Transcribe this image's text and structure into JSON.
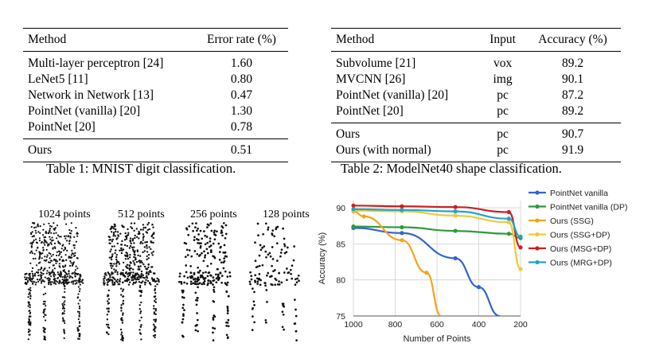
{
  "table1": {
    "headers": [
      "Method",
      "Error rate (%)"
    ],
    "rows": [
      [
        "Multi-layer perceptron [24]",
        "1.60"
      ],
      [
        "LeNet5 [11]",
        "0.80"
      ],
      [
        "Network in Network [13]",
        "0.47"
      ],
      [
        "PointNet (vanilla) [20]",
        "1.30"
      ],
      [
        "PointNet [20]",
        "0.78"
      ]
    ],
    "ours": [
      "Ours",
      "0.51"
    ],
    "caption": "Table 1: MNIST digit classification."
  },
  "table2": {
    "headers": [
      "Method",
      "Input",
      "Accuracy (%)"
    ],
    "rows": [
      [
        "Subvolume [21]",
        "vox",
        "89.2"
      ],
      [
        "MVCNN [26]",
        "img",
        "90.1"
      ],
      [
        "PointNet (vanilla) [20]",
        "pc",
        "87.2"
      ],
      [
        "PointNet [20]",
        "pc",
        "89.2"
      ]
    ],
    "ours": [
      [
        "Ours",
        "pc",
        "90.7"
      ],
      [
        "Ours (with normal)",
        "pc",
        "91.9"
      ]
    ],
    "caption": "Table 2: ModelNet40 shape classification."
  },
  "pointclouds": {
    "labels": [
      "1024 points",
      "512 points",
      "256 points",
      "128 points"
    ],
    "counts": [
      1024,
      512,
      256,
      128
    ]
  },
  "chart_data": {
    "type": "line",
    "xlabel": "Number of Points",
    "ylabel": "Accuracy (%)",
    "xlim": [
      1000,
      200
    ],
    "ylim": [
      75,
      91
    ],
    "xticks": [
      1000,
      800,
      600,
      400,
      200
    ],
    "yticks": [
      75,
      80,
      85,
      90
    ],
    "legend_position": "right",
    "series": [
      {
        "name": "PointNet vanilla",
        "color": "#3366cc",
        "x": [
          1024,
          768,
          512,
          400,
          300
        ],
        "y": [
          87.2,
          86.5,
          83.0,
          79.0,
          75.0
        ]
      },
      {
        "name": "PointNet vanilla (DP)",
        "color": "#2e9b3a",
        "x": [
          1024,
          768,
          512,
          256,
          200
        ],
        "y": [
          87.4,
          87.3,
          86.8,
          86.4,
          85.8
        ]
      },
      {
        "name": "Ours (SSG)",
        "color": "#f5a31a",
        "x": [
          1024,
          950,
          768,
          650,
          580
        ],
        "y": [
          89.5,
          88.8,
          85.5,
          81.0,
          75.0
        ]
      },
      {
        "name": "Ours (SSG+DP)",
        "color": "#f0c93a",
        "x": [
          1024,
          768,
          512,
          256,
          200
        ],
        "y": [
          89.6,
          89.5,
          88.9,
          88.0,
          81.5
        ]
      },
      {
        "name": "Ours (MSG+DP)",
        "color": "#cc1f1f",
        "x": [
          1024,
          768,
          512,
          256,
          200
        ],
        "y": [
          90.3,
          90.2,
          90.1,
          89.4,
          84.5
        ]
      },
      {
        "name": "Ours (MRG+DP)",
        "color": "#1ea5c9",
        "x": [
          1024,
          768,
          512,
          256,
          200
        ],
        "y": [
          89.8,
          89.7,
          89.5,
          88.5,
          86.0
        ]
      }
    ]
  }
}
